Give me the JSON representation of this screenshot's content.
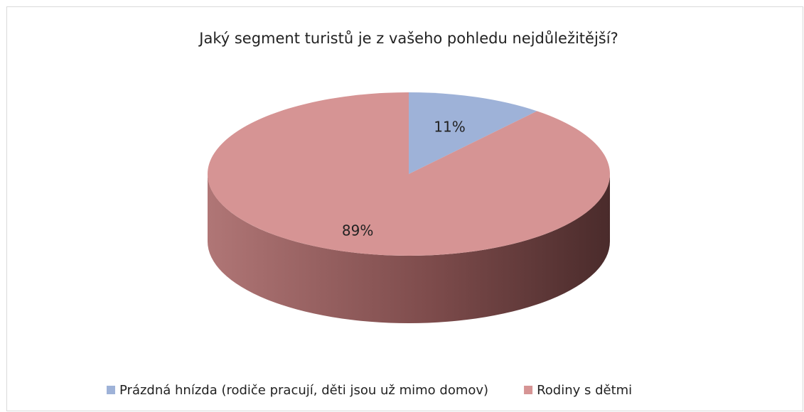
{
  "chart_data": {
    "type": "pie",
    "title": "Jaký segment turistů je z vašeho pohledu nejdůležitější?",
    "categories": [
      "Prázdná hnízda (rodiče pracují, děti jsou už mimo domov)",
      "Rodiny s dětmi"
    ],
    "values": [
      11,
      89
    ],
    "value_labels": [
      "11%",
      "89%"
    ],
    "colors": [
      "#9eb2d8",
      "#d69494"
    ],
    "legend": "bottom"
  }
}
